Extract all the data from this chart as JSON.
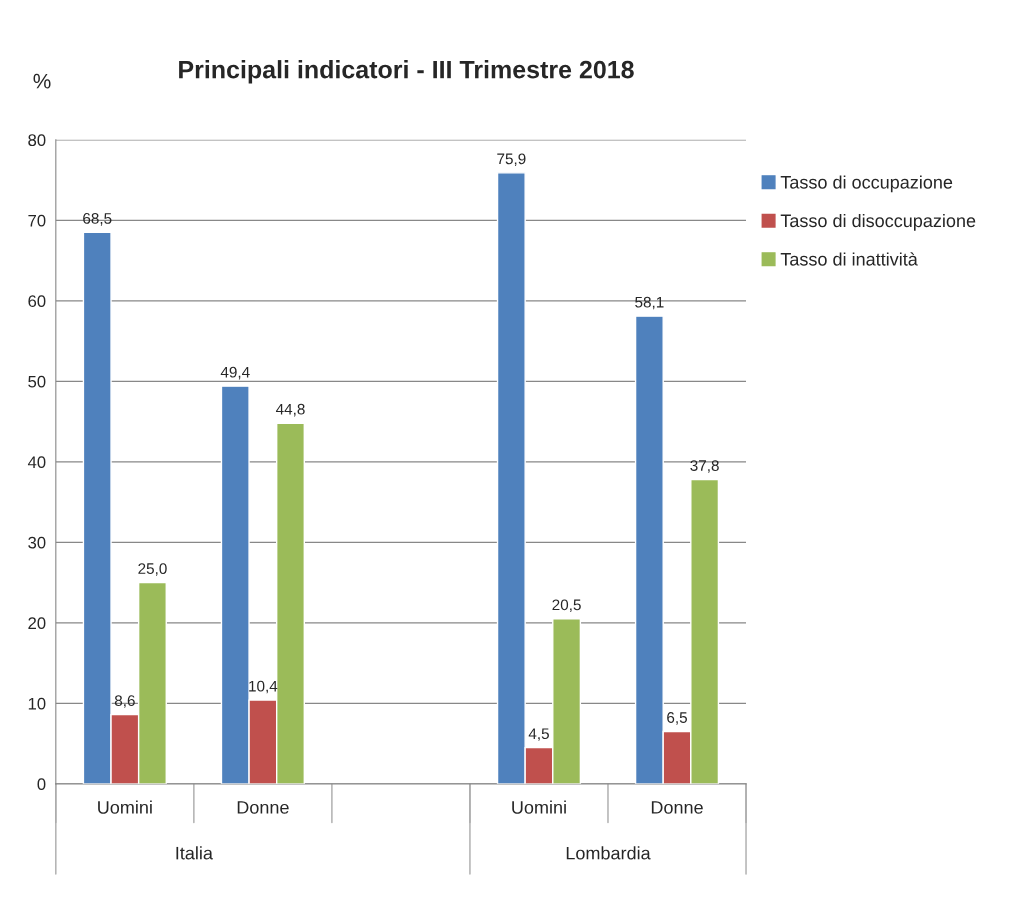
{
  "chart_data": {
    "type": "bar",
    "title": "Principali indicatori - III Trimestre 2018",
    "ylabel": "%",
    "categories": [
      "Uomini",
      "Donne",
      null,
      "Uomini",
      "Donne"
    ],
    "series": [
      {
        "name": "Tasso di occupazione",
        "color": "#4f81bd",
        "values": [
          68.5,
          49.4,
          null,
          75.9,
          58.1
        ],
        "value_labels": [
          "68,5",
          "49,4",
          null,
          "75,9",
          "58,1"
        ]
      },
      {
        "name": "Tasso di disoccupazione",
        "color": "#c0504d",
        "values": [
          8.6,
          10.4,
          null,
          4.5,
          6.5
        ],
        "value_labels": [
          "8,6",
          "10,4",
          null,
          "4,5",
          "6,5"
        ]
      },
      {
        "name": "Tasso di inattività",
        "color": "#9bbb59",
        "values": [
          25.0,
          44.8,
          null,
          20.5,
          37.8
        ],
        "value_labels": [
          "25,0",
          "44,8",
          null,
          "20,5",
          "37,8"
        ]
      }
    ],
    "annotations": [
      "Italia",
      "Lombardia"
    ],
    "ylim": [
      0,
      80
    ],
    "yticks": [
      0,
      10,
      20,
      30,
      40,
      50,
      60,
      70,
      80
    ],
    "grid": "y",
    "legend": "right"
  }
}
